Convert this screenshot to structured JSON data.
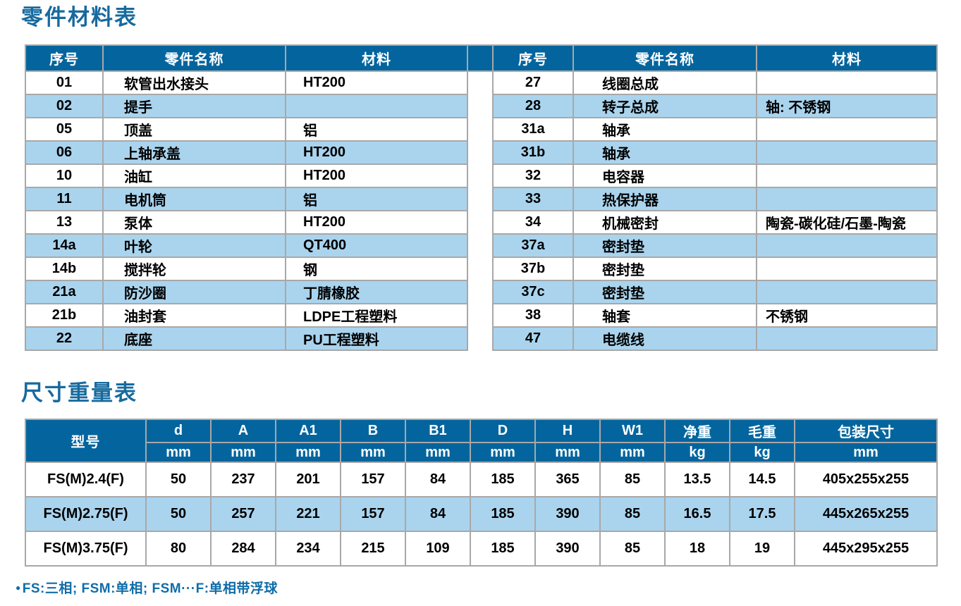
{
  "titles": {
    "parts": "零件材料表",
    "dimensions": "尺寸重量表"
  },
  "colors": {
    "header_blue": "#04659e",
    "row_light_blue": "#aad4ee",
    "title_blue": "#176a9e",
    "footnote_blue": "#0f6da8",
    "border_gray": "#a8a8a8"
  },
  "parts_table": {
    "headers": {
      "index": "序号",
      "name": "零件名称",
      "material": "材料"
    },
    "left_rows": [
      {
        "index": "01",
        "name": "软管出水接头",
        "material": "HT200"
      },
      {
        "index": "02",
        "name": "提手",
        "material": ""
      },
      {
        "index": "05",
        "name": "顶盖",
        "material": "铝"
      },
      {
        "index": "06",
        "name": "上轴承盖",
        "material": "HT200"
      },
      {
        "index": "10",
        "name": "油缸",
        "material": "HT200"
      },
      {
        "index": "11",
        "name": "电机筒",
        "material": "铝"
      },
      {
        "index": "13",
        "name": "泵体",
        "material": "HT200"
      },
      {
        "index": "14a",
        "name": "叶轮",
        "material": "QT400"
      },
      {
        "index": "14b",
        "name": "搅拌轮",
        "material": "钢"
      },
      {
        "index": "21a",
        "name": "防沙圈",
        "material": "丁腈橡胶"
      },
      {
        "index": "21b",
        "name": "油封套",
        "material": "LDPE工程塑料"
      },
      {
        "index": "22",
        "name": "底座",
        "material": "PU工程塑料"
      }
    ],
    "right_rows": [
      {
        "index": "27",
        "name": "线圈总成",
        "material": ""
      },
      {
        "index": "28",
        "name": "转子总成",
        "material": "轴: 不锈钢"
      },
      {
        "index": "31a",
        "name": "轴承",
        "material": ""
      },
      {
        "index": "31b",
        "name": "轴承",
        "material": ""
      },
      {
        "index": "32",
        "name": "电容器",
        "material": ""
      },
      {
        "index": "33",
        "name": "热保护器",
        "material": ""
      },
      {
        "index": "34",
        "name": "机械密封",
        "material": "陶瓷-碳化硅/石墨-陶瓷"
      },
      {
        "index": "37a",
        "name": "密封垫",
        "material": ""
      },
      {
        "index": "37b",
        "name": "密封垫",
        "material": ""
      },
      {
        "index": "37c",
        "name": "密封垫",
        "material": ""
      },
      {
        "index": "38",
        "name": "轴套",
        "material": "不锈钢"
      },
      {
        "index": "47",
        "name": "电缆线",
        "material": ""
      }
    ]
  },
  "dimensions_table": {
    "model_header": "型号",
    "columns": [
      {
        "label": "d",
        "unit": "mm"
      },
      {
        "label": "A",
        "unit": "mm"
      },
      {
        "label": "A1",
        "unit": "mm"
      },
      {
        "label": "B",
        "unit": "mm"
      },
      {
        "label": "B1",
        "unit": "mm"
      },
      {
        "label": "D",
        "unit": "mm"
      },
      {
        "label": "H",
        "unit": "mm"
      },
      {
        "label": "W1",
        "unit": "mm"
      },
      {
        "label": "净重",
        "unit": "kg"
      },
      {
        "label": "毛重",
        "unit": "kg"
      },
      {
        "label": "包装尺寸",
        "unit": "mm"
      }
    ],
    "rows": [
      {
        "model": "FS(M)2.4(F)",
        "values": [
          "50",
          "237",
          "201",
          "157",
          "84",
          "185",
          "365",
          "85",
          "13.5",
          "14.5",
          "405x255x255"
        ]
      },
      {
        "model": "FS(M)2.75(F)",
        "values": [
          "50",
          "257",
          "221",
          "157",
          "84",
          "185",
          "390",
          "85",
          "16.5",
          "17.5",
          "445x265x255"
        ]
      },
      {
        "model": "FS(M)3.75(F)",
        "values": [
          "80",
          "284",
          "234",
          "215",
          "109",
          "185",
          "390",
          "85",
          "18",
          "19",
          "445x295x255"
        ]
      }
    ]
  },
  "footnote": {
    "bullet": "●",
    "text": "FS:三相; FSM:单相; FSM···F:单相带浮球"
  }
}
